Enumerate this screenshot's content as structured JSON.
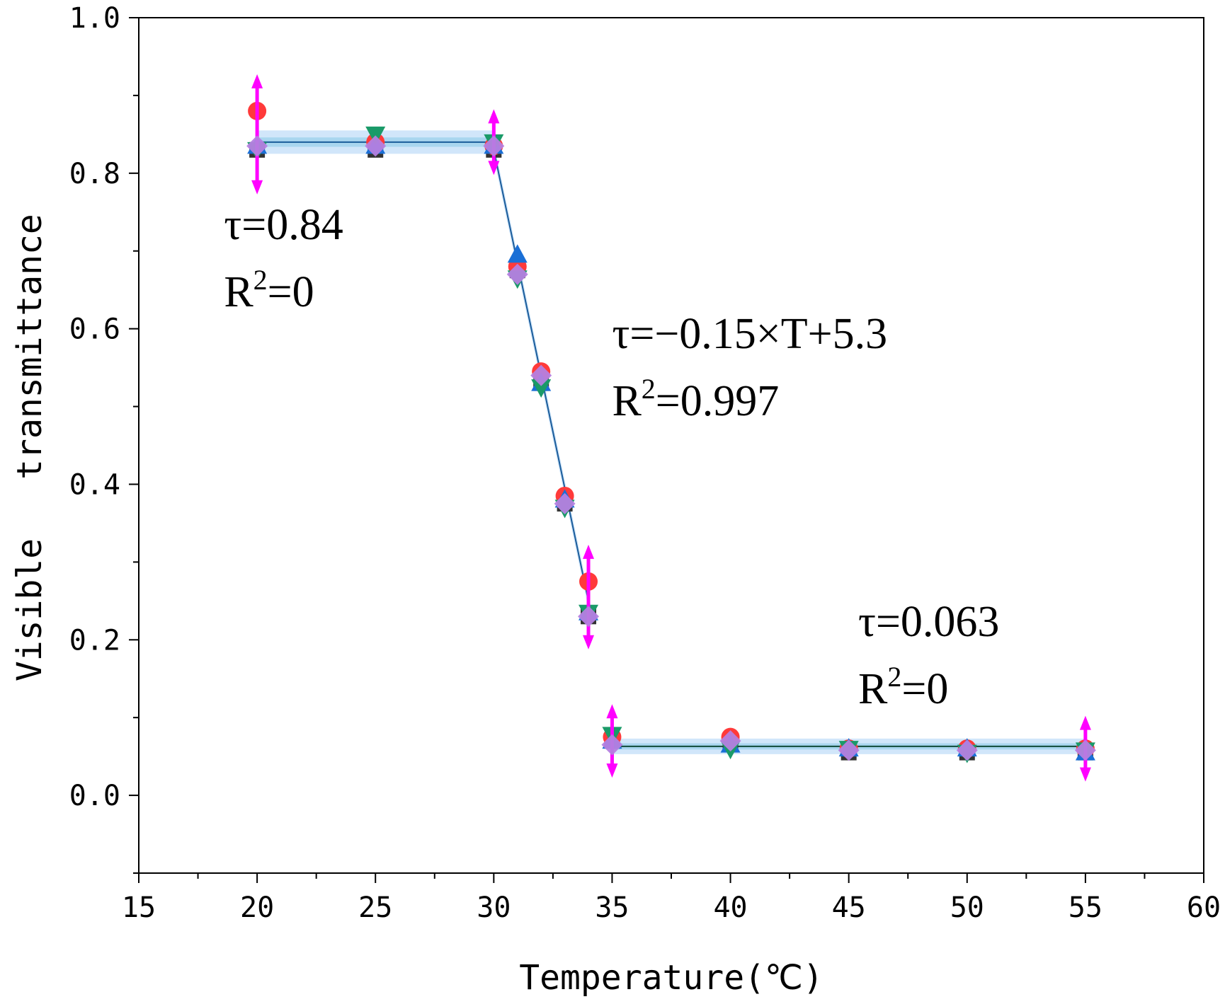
{
  "chart_data": {
    "type": "scatter",
    "title": "",
    "xlabel": "Temperature(℃)",
    "ylabel_parts": [
      "Visible",
      "transmittance"
    ],
    "xlim": [
      15,
      60
    ],
    "ylim": [
      -0.1,
      1.0
    ],
    "xticks": [
      15,
      20,
      25,
      30,
      35,
      40,
      45,
      50,
      55,
      60
    ],
    "xtick_labels": [
      "15",
      "20",
      "25",
      "30",
      "35",
      "40",
      "45",
      "50",
      "55",
      "60"
    ],
    "yticks": [
      0.0,
      0.2,
      0.4,
      0.6,
      0.8,
      1.0
    ],
    "ytick_labels": [
      "0.0",
      "0.2",
      "0.4",
      "0.6",
      "0.8",
      "1.0"
    ],
    "grid": false,
    "series": [
      {
        "name": "black squares",
        "marker": "square",
        "color": "#333333",
        "points": [
          [
            20,
            0.83
          ],
          [
            25,
            0.83
          ],
          [
            30,
            0.83
          ],
          [
            31,
            0.675
          ],
          [
            32,
            0.53
          ],
          [
            33,
            0.375
          ],
          [
            34,
            0.23
          ],
          [
            35,
            0.07
          ],
          [
            40,
            0.07
          ],
          [
            45,
            0.055
          ],
          [
            50,
            0.055
          ],
          [
            55,
            0.055
          ]
        ]
      },
      {
        "name": "red circles",
        "marker": "circle",
        "color": "#ff3a3a",
        "points": [
          [
            20,
            0.88
          ],
          [
            25,
            0.84
          ],
          [
            30,
            0.835
          ],
          [
            31,
            0.68
          ],
          [
            32,
            0.545
          ],
          [
            33,
            0.385
          ],
          [
            34,
            0.275
          ],
          [
            35,
            0.075
          ],
          [
            40,
            0.075
          ],
          [
            45,
            0.06
          ],
          [
            50,
            0.06
          ],
          [
            55,
            0.06
          ]
        ]
      },
      {
        "name": "blue up triangles",
        "marker": "triangle-up",
        "color": "#1a6fd6",
        "points": [
          [
            20,
            0.835
          ],
          [
            25,
            0.835
          ],
          [
            30,
            0.835
          ],
          [
            31,
            0.695
          ],
          [
            32,
            0.53
          ],
          [
            33,
            0.38
          ],
          [
            34,
            0.235
          ],
          [
            35,
            0.07
          ],
          [
            40,
            0.065
          ],
          [
            45,
            0.06
          ],
          [
            50,
            0.06
          ],
          [
            55,
            0.055
          ]
        ]
      },
      {
        "name": "green down triangles",
        "marker": "triangle-down",
        "color": "#1a9a68",
        "points": [
          [
            20,
            0.83
          ],
          [
            25,
            0.85
          ],
          [
            30,
            0.84
          ],
          [
            31,
            0.665
          ],
          [
            32,
            0.525
          ],
          [
            33,
            0.37
          ],
          [
            34,
            0.235
          ],
          [
            35,
            0.078
          ],
          [
            40,
            0.06
          ],
          [
            45,
            0.06
          ],
          [
            50,
            0.055
          ],
          [
            55,
            0.058
          ]
        ]
      },
      {
        "name": "magenta error bars",
        "marker": "error-bar",
        "color": "#ff00ff",
        "points": [
          [
            20,
            0.85,
            0.07
          ],
          [
            30,
            0.84,
            0.035
          ],
          [
            34,
            0.255,
            0.06
          ],
          [
            35,
            0.07,
            0.04
          ],
          [
            55,
            0.06,
            0.035
          ]
        ]
      },
      {
        "name": "violet diamonds",
        "marker": "diamond",
        "color": "#b57fe0",
        "points": [
          [
            20,
            0.835
          ],
          [
            25,
            0.835
          ],
          [
            30,
            0.835
          ],
          [
            31,
            0.67
          ],
          [
            32,
            0.54
          ],
          [
            33,
            0.375
          ],
          [
            34,
            0.23
          ],
          [
            35,
            0.065
          ],
          [
            40,
            0.07
          ],
          [
            45,
            0.058
          ],
          [
            50,
            0.058
          ],
          [
            55,
            0.058
          ]
        ]
      }
    ],
    "fits": [
      {
        "name": "plateau-high",
        "x": [
          20,
          30
        ],
        "y": [
          0.84,
          0.84
        ],
        "band_halfwidth": 0.015,
        "confidence_halfwidth": 0.006
      },
      {
        "name": "linear",
        "x": [
          30,
          34
        ],
        "y": [
          0.83,
          0.25
        ],
        "band_halfwidth": 0.01,
        "confidence_halfwidth": 0.004
      },
      {
        "name": "plateau-low",
        "x": [
          35,
          55
        ],
        "y": [
          0.063,
          0.063
        ],
        "band_halfwidth": 0.01,
        "confidence_halfwidth": 0.004
      }
    ],
    "annotations": [
      {
        "lines": [
          {
            "text": "τ=0.84"
          },
          {
            "base": "R",
            "sup": "2",
            "rest": "=0"
          }
        ],
        "x": 18.6,
        "y": 0.715
      },
      {
        "lines": [
          {
            "text": "τ=−0.15×T+5.3"
          },
          {
            "base": "R",
            "sup": "2",
            "rest": "=0.997"
          }
        ],
        "x": 35.0,
        "y": 0.575
      },
      {
        "lines": [
          {
            "text": "τ=0.063"
          },
          {
            "base": "R",
            "sup": "2",
            "rest": "=0"
          }
        ],
        "x": 45.4,
        "y": 0.205
      }
    ],
    "colors": {
      "axis": "#000000",
      "band": "#b9d9f7",
      "ci": "#9fd2ec",
      "fit_line": "#1b5c9a",
      "fit_line_low": "#0f4a3a"
    }
  }
}
